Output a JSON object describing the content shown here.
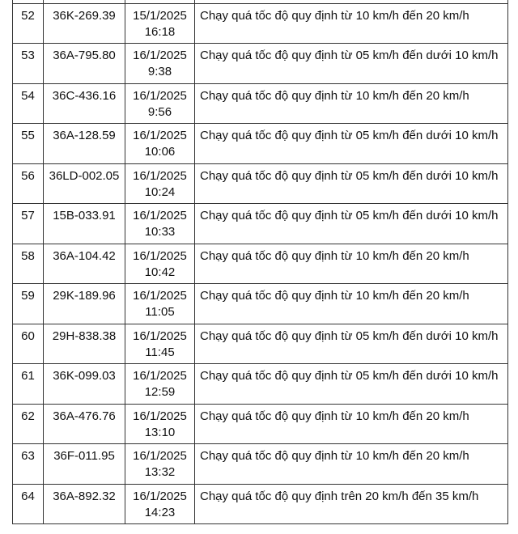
{
  "rows": [
    {
      "no": "52",
      "plate": "36K-269.39",
      "date": "15/1/2025",
      "time": "16:18",
      "violation": "Chạy quá tốc độ quy định từ 10 km/h đến 20 km/h"
    },
    {
      "no": "53",
      "plate": "36A-795.80",
      "date": "16/1/2025",
      "time": "9:38",
      "violation": "Chạy quá tốc độ quy định từ 05 km/h đến dưới 10 km/h"
    },
    {
      "no": "54",
      "plate": "36C-436.16",
      "date": "16/1/2025",
      "time": "9:56",
      "violation": "Chạy quá tốc độ quy định từ 10 km/h đến 20 km/h"
    },
    {
      "no": "55",
      "plate": "36A-128.59",
      "date": "16/1/2025",
      "time": "10:06",
      "violation": "Chạy quá tốc độ quy định từ 05 km/h đến dưới 10 km/h"
    },
    {
      "no": "56",
      "plate": "36LD-002.05",
      "date": "16/1/2025",
      "time": "10:24",
      "violation": "Chạy quá tốc độ quy định từ 05 km/h đến dưới 10 km/h"
    },
    {
      "no": "57",
      "plate": "15B-033.91",
      "date": "16/1/2025",
      "time": "10:33",
      "violation": "Chạy quá tốc độ quy định từ 05 km/h đến dưới 10 km/h"
    },
    {
      "no": "58",
      "plate": "36A-104.42",
      "date": "16/1/2025",
      "time": "10:42",
      "violation": "Chạy quá tốc độ quy định từ 10 km/h đến 20 km/h"
    },
    {
      "no": "59",
      "plate": "29K-189.96",
      "date": "16/1/2025",
      "time": "11:05",
      "violation": "Chạy quá tốc độ quy định từ 10 km/h đến 20 km/h"
    },
    {
      "no": "60",
      "plate": "29H-838.38",
      "date": "16/1/2025",
      "time": "11:45",
      "violation": "Chạy quá tốc độ quy định từ 05 km/h đến dưới 10 km/h"
    },
    {
      "no": "61",
      "plate": "36K-099.03",
      "date": "16/1/2025",
      "time": "12:59",
      "violation": "Chạy quá tốc độ quy định từ 05 km/h đến dưới 10 km/h"
    },
    {
      "no": "62",
      "plate": "36A-476.76",
      "date": "16/1/2025",
      "time": "13:10",
      "violation": "Chạy quá tốc độ quy định từ 10 km/h đến 20 km/h"
    },
    {
      "no": "63",
      "plate": "36F-011.95",
      "date": "16/1/2025",
      "time": "13:32",
      "violation": "Chạy quá tốc độ quy định từ 10 km/h đến 20 km/h"
    },
    {
      "no": "64",
      "plate": "36A-892.32",
      "date": "16/1/2025",
      "time": "14:23",
      "violation": "Chạy quá tốc độ quy định trên 20 km/h đến 35 km/h"
    }
  ]
}
